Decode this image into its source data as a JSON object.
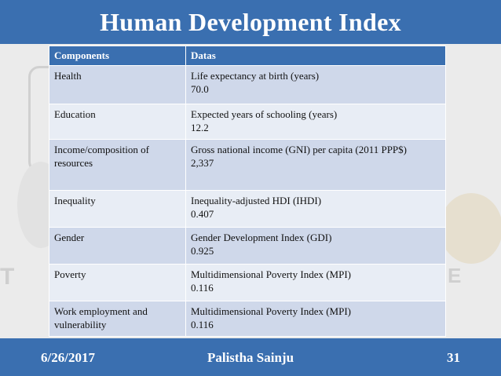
{
  "slide": {
    "title": "Human Development Index"
  },
  "table": {
    "headers": [
      "Components",
      "Datas"
    ],
    "rows": [
      {
        "component": "Health",
        "indicator": "Life expectancy at birth (years)",
        "value": "70.0"
      },
      {
        "component": "Education",
        "indicator": "Expected years of schooling (years)",
        "value": "12.2"
      },
      {
        "component": "Income/composition of resources",
        "indicator": "Gross national income (GNI) per capita (2011 PPP$)",
        "value": "2,337"
      },
      {
        "component": "Inequality",
        "indicator": "Inequality-adjusted HDI (IHDI)",
        "value": "0.407"
      },
      {
        "component": "Gender",
        "indicator": "Gender Development Index (GDI)",
        "value": "0.925"
      },
      {
        "component": "Poverty",
        "indicator": "Multidimensional Poverty Index (MPI)",
        "value": "0.116"
      },
      {
        "component": "Work employment and vulnerability",
        "indicator": "Multidimensional Poverty Index (MPI)",
        "value": "0.116"
      }
    ]
  },
  "footer": {
    "date": "6/26/2017",
    "author": "Palistha Sainju",
    "page": "31"
  },
  "colors": {
    "accent": "#3a6fb0",
    "row_dark": "#cfd8ea",
    "row_light": "#e8edf5"
  }
}
